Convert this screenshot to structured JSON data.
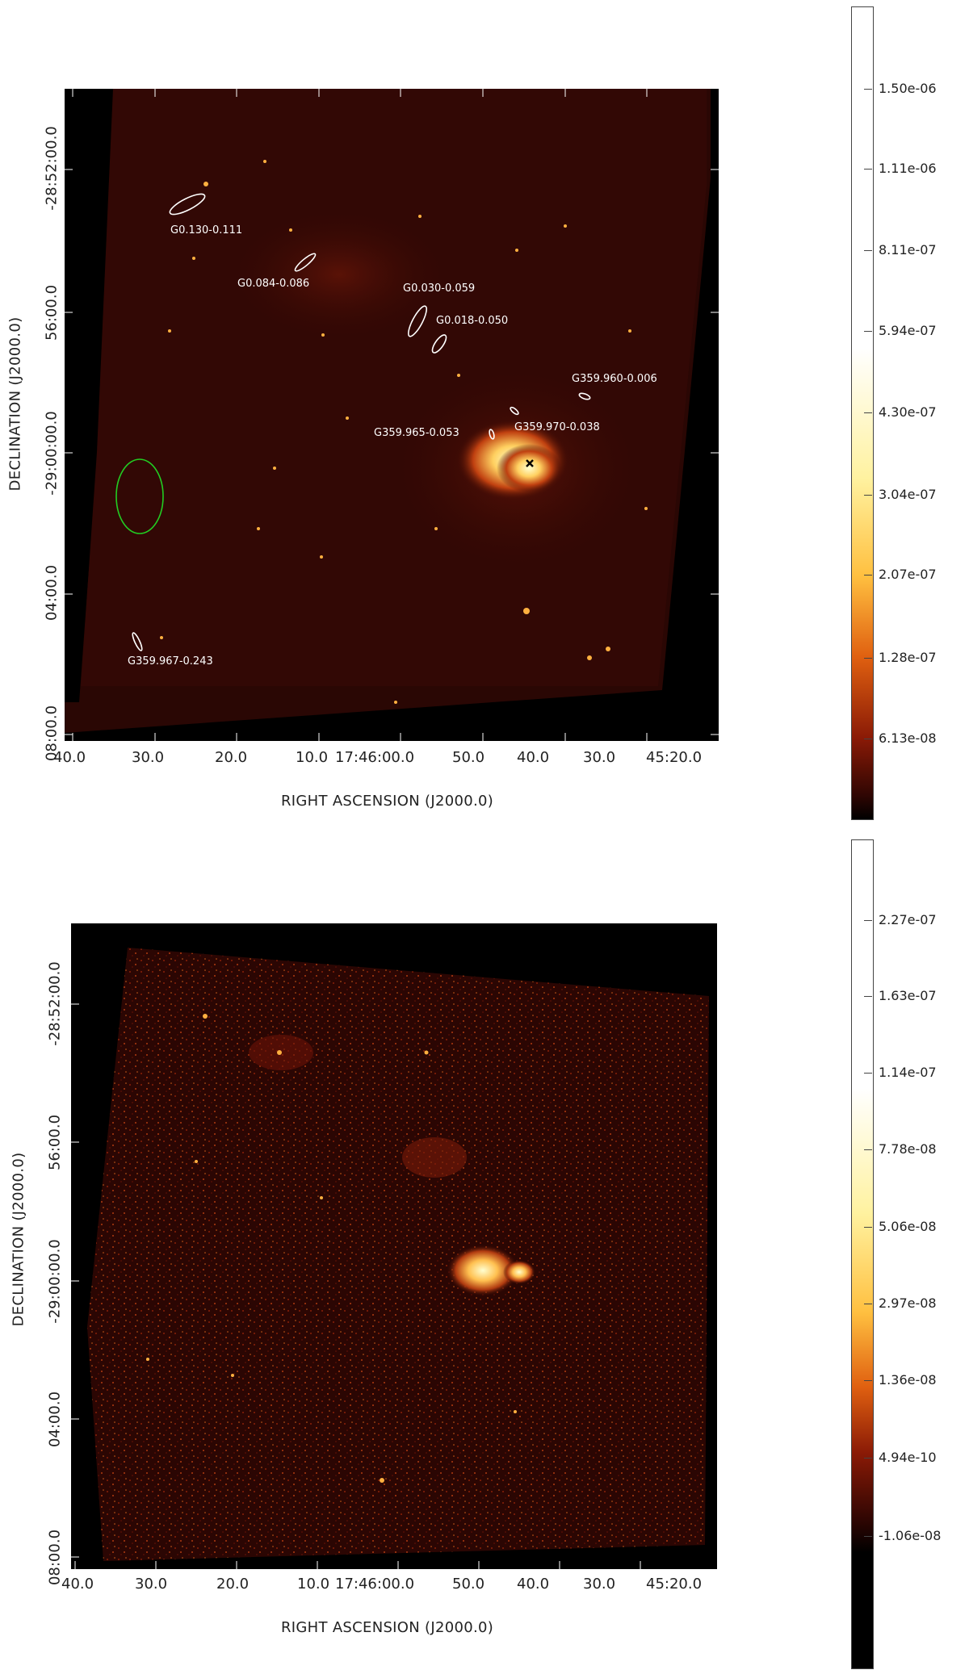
{
  "top": {
    "x_axis_title": "RIGHT ASCENSION (J2000.0)",
    "y_axis_title": "DECLINATION (J2000.0)",
    "x_ticks": [
      "40.0",
      "30.0",
      "20.0",
      "10.0",
      "17:46:00.0",
      "50.0",
      "40.0",
      "30.0",
      "45:20.0"
    ],
    "y_ticks": [
      "-28:52:00.0",
      "56:00.0",
      "-29:00:00.0",
      "04:00.0",
      "08:00.0"
    ],
    "colorbar_ticks": [
      "1.50e-06",
      "1.11e-06",
      "8.11e-07",
      "5.94e-07",
      "4.30e-07",
      "3.04e-07",
      "2.07e-07",
      "1.28e-07",
      "6.13e-08"
    ],
    "sources": [
      "G0.130-0.111",
      "G0.084-0.086",
      "G0.030-0.059",
      "G0.018-0.050",
      "G359.960-0.006",
      "G359.965-0.053",
      "G359.970-0.038",
      "G359.967-0.243"
    ]
  },
  "bottom": {
    "x_axis_title": "RIGHT ASCENSION (J2000.0)",
    "y_axis_title": "DECLINATION (J2000.0)",
    "x_ticks": [
      "40.0",
      "30.0",
      "20.0",
      "10.0",
      "17:46:00.0",
      "50.0",
      "40.0",
      "30.0",
      "45:20.0"
    ],
    "y_ticks": [
      "-28:52:00.0",
      "56:00.0",
      "-29:00:00.0",
      "04:00.0",
      "08:00.0"
    ],
    "colorbar_ticks": [
      "2.27e-07",
      "1.63e-07",
      "1.14e-07",
      "7.78e-08",
      "5.06e-08",
      "2.97e-08",
      "1.36e-08",
      "4.94e-10",
      "-1.06e-08"
    ]
  },
  "colors": {
    "sky_dark": "#1c0402",
    "sky_mid": "#5a0d05",
    "hot": "#ff9a20",
    "hotter": "#ffe070",
    "region_white": "#ffffff",
    "region_green": "#22cc22"
  }
}
